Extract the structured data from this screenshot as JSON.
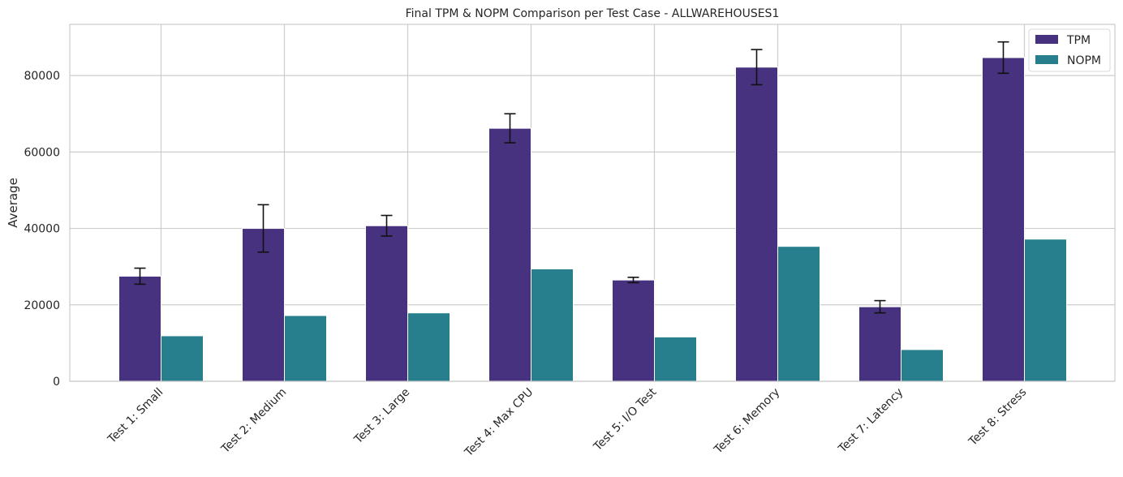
{
  "chart_data": {
    "type": "bar",
    "title": "Final TPM & NOPM Comparison per Test Case - ALLWAREHOUSES1",
    "xlabel": "",
    "ylabel": "Average",
    "categories": [
      "Test 1: Small",
      "Test 2: Medium",
      "Test 3: Large",
      "Test 4: Max CPU",
      "Test 5: I/O Test",
      "Test 6: Memory",
      "Test 7: Latency",
      "Test 8: Stress"
    ],
    "series": [
      {
        "name": "TPM",
        "color": "#46327e",
        "values": [
          27500,
          40000,
          40700,
          66200,
          26500,
          82200,
          19500,
          84700
        ],
        "error": [
          2100,
          6200,
          2700,
          3800,
          700,
          4600,
          1600,
          4100
        ]
      },
      {
        "name": "NOPM",
        "color": "#277f8e",
        "values": [
          11900,
          17200,
          17900,
          29400,
          11600,
          35300,
          8300,
          37200
        ]
      }
    ],
    "yticks": [
      0,
      20000,
      40000,
      60000,
      80000
    ],
    "ylim": [
      0,
      93400
    ],
    "grid": true,
    "legend_position": "top-right"
  }
}
